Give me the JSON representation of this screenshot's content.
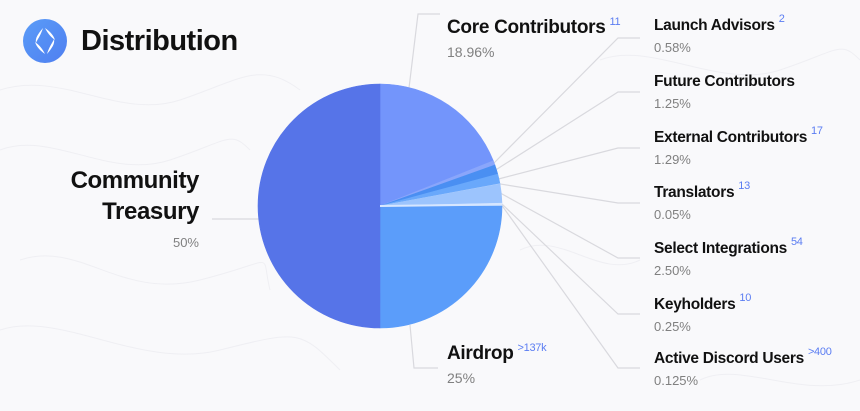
{
  "header": {
    "title": "Distribution",
    "logo_icon": "ens-logo-icon"
  },
  "colors": {
    "background": "#f9f9fb",
    "count_accent": "#5b7df2",
    "percent_text": "#808080",
    "leader_line": "#d9d9de"
  },
  "chart_data": {
    "type": "pie",
    "title": "Distribution",
    "start_angle_deg": 0,
    "direction": "clockwise",
    "slices": [
      {
        "label": "Core Contributors",
        "value": 18.96,
        "pct_label": "18.96%",
        "count": "11",
        "color": "#7395fb"
      },
      {
        "label": "Launch Advisors",
        "value": 0.58,
        "pct_label": "0.58%",
        "count": "2",
        "color": "#8aa6fb"
      },
      {
        "label": "Future Contributors",
        "value": 1.25,
        "pct_label": "1.25%",
        "count": "",
        "color": "#4a8ff2"
      },
      {
        "label": "External Contributors",
        "value": 1.29,
        "pct_label": "1.29%",
        "count": "17",
        "color": "#69a8fb"
      },
      {
        "label": "Translators",
        "value": 0.05,
        "pct_label": "0.05%",
        "count": "13",
        "color": "#b8d4fd"
      },
      {
        "label": "Select Integrations",
        "value": 2.5,
        "pct_label": "2.50%",
        "count": "54",
        "color": "#9cc4fd"
      },
      {
        "label": "Keyholders",
        "value": 0.25,
        "pct_label": "0.25%",
        "count": "10",
        "color": "#d6e6ff"
      },
      {
        "label": "Active Discord Users",
        "value": 0.125,
        "pct_label": "0.125%",
        "count": ">400",
        "color": "#c4dcff"
      },
      {
        "label": "Airdrop",
        "value": 25,
        "pct_label": "25%",
        "count": ">137k",
        "color": "#5b9dfa"
      },
      {
        "label": "Community Treasury",
        "value": 50,
        "pct_label": "50%",
        "count": "",
        "color": "#5674e8"
      }
    ]
  },
  "labels": {
    "community_treasury": {
      "line1": "Community",
      "line2": "Treasury",
      "pct": "50%"
    },
    "core_contributors": {
      "name": "Core Contributors",
      "count": "11",
      "pct": "18.96%"
    },
    "airdrop": {
      "name": "Airdrop",
      "count": ">137k",
      "pct": "25%"
    },
    "right": [
      {
        "name": "Launch Advisors",
        "count": "2",
        "pct": "0.58%"
      },
      {
        "name": "Future Contributors",
        "count": "",
        "pct": "1.25%"
      },
      {
        "name": "External Contributors",
        "count": "17",
        "pct": "1.29%"
      },
      {
        "name": "Translators",
        "count": "13",
        "pct": "0.05%"
      },
      {
        "name": "Select Integrations",
        "count": "54",
        "pct": "2.50%"
      },
      {
        "name": "Keyholders",
        "count": "10",
        "pct": "0.25%"
      },
      {
        "name": "Active Discord Users",
        "count": ">400",
        "pct": "0.125%"
      }
    ]
  }
}
